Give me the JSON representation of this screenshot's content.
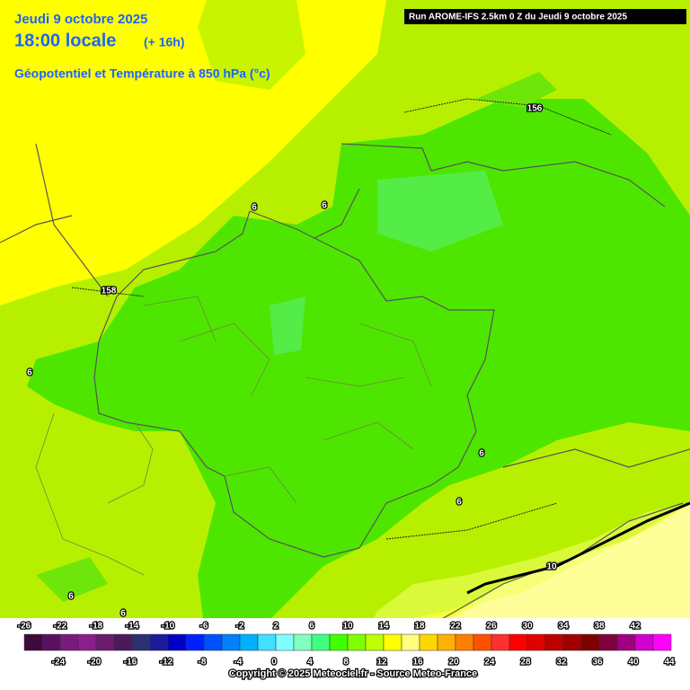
{
  "header": {
    "date": "Jeudi 9 octobre 2025",
    "time": "18:00 locale",
    "offset": "(+ 16h)",
    "field": "Géopotentiel et Température à 850 hPa (°c)",
    "run": "Run AROME-IFS 2.5km 0 Z du Jeudi 9 octobre 2025"
  },
  "contour_labels": [
    156,
    158,
    6,
    6,
    6,
    6,
    6,
    6,
    6,
    10
  ],
  "legend": {
    "ticks": [
      -26,
      -24,
      -22,
      -20,
      -18,
      -16,
      -14,
      -12,
      -10,
      -8,
      -6,
      -4,
      -2,
      0,
      2,
      4,
      6,
      8,
      10,
      12,
      14,
      16,
      18,
      20,
      22,
      24,
      26,
      28,
      30,
      32,
      34,
      36,
      38,
      40,
      42,
      44
    ],
    "colors": [
      "#3c0a3c",
      "#5a1060",
      "#7a1a80",
      "#8c1e8c",
      "#6e1a6e",
      "#4a1a5a",
      "#2a3070",
      "#1a1a9a",
      "#0000c8",
      "#0020ff",
      "#0050ff",
      "#0080ff",
      "#00b0ff",
      "#40e0ff",
      "#80ffff",
      "#80ffc0",
      "#40ff80",
      "#40ff00",
      "#80ff00",
      "#c0ff00",
      "#ffff00",
      "#ffff80",
      "#ffd700",
      "#ffb000",
      "#ff8000",
      "#ff5000",
      "#ff3030",
      "#ff0000",
      "#e00000",
      "#c00000",
      "#a00000",
      "#800000",
      "#800040",
      "#a00080",
      "#d000d0",
      "#ff00ff"
    ]
  },
  "footer": {
    "copyright": "Copyright © 2025 Meteociel.fr - Source Meteo-France"
  }
}
